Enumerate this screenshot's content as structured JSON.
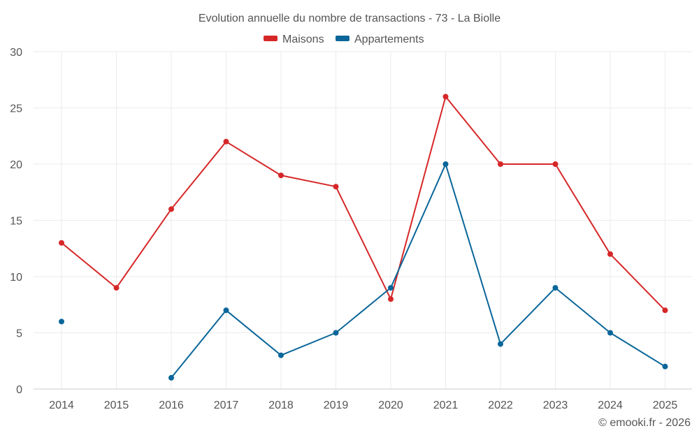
{
  "chart_data": {
    "type": "line",
    "title": "Evolution annuelle du nombre de transactions - 73 - La Biolle",
    "xlabel": "",
    "ylabel": "",
    "categories": [
      "2014",
      "2015",
      "2016",
      "2017",
      "2018",
      "2019",
      "2020",
      "2021",
      "2022",
      "2023",
      "2024",
      "2025"
    ],
    "ylim": [
      0,
      30
    ],
    "yticks": [
      0,
      5,
      10,
      15,
      20,
      25,
      30
    ],
    "grid": true,
    "legend_position": "top-center",
    "series": [
      {
        "name": "Maisons",
        "color": "#d62728",
        "values": [
          13,
          9,
          16,
          22,
          19,
          18,
          8,
          26,
          20,
          20,
          12,
          7
        ]
      },
      {
        "name": "Appartements",
        "color": "#0a6699",
        "values": [
          6,
          null,
          1,
          7,
          3,
          5,
          9,
          20,
          4,
          9,
          5,
          2
        ]
      }
    ]
  },
  "credit": "© emooki.fr - 2026"
}
